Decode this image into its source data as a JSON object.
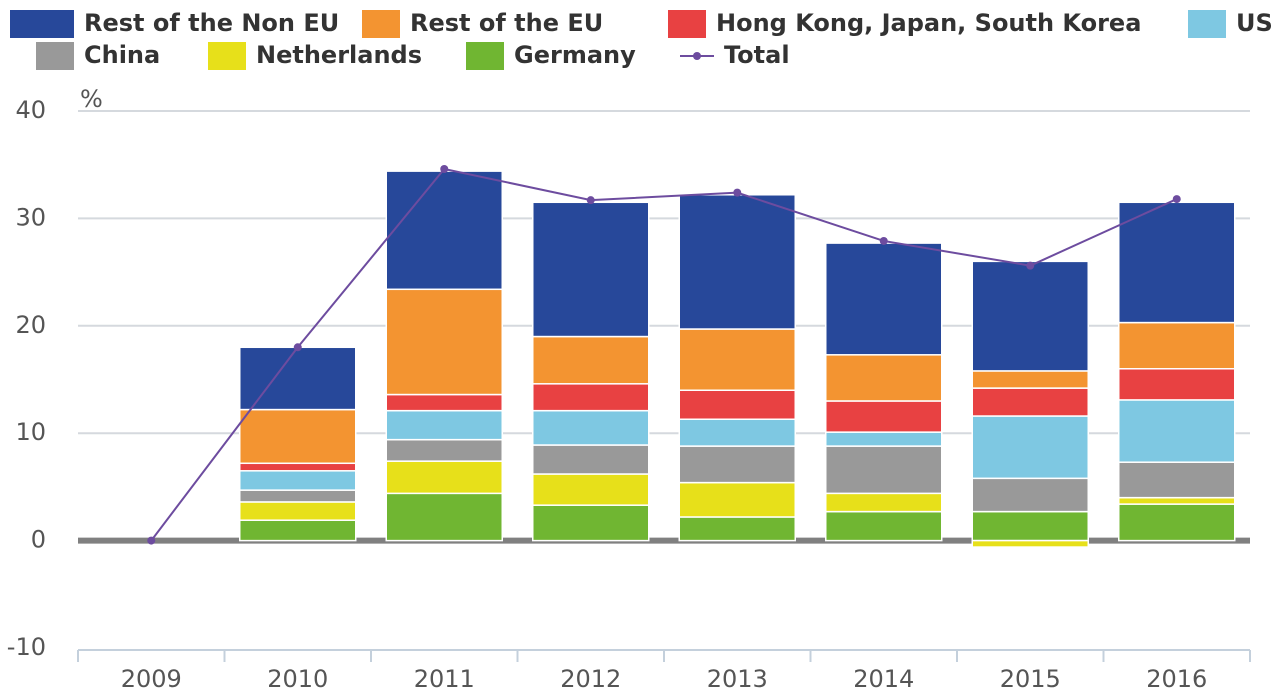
{
  "chart_data": {
    "type": "bar",
    "stacked": true,
    "unit_label": "%",
    "categories": [
      "2009",
      "2010",
      "2011",
      "2012",
      "2013",
      "2014",
      "2015",
      "2016"
    ],
    "series": [
      {
        "name": "Rest of the Non EU",
        "color": "#27489a",
        "values": [
          0,
          5.8,
          11.0,
          12.5,
          12.5,
          10.4,
          10.2,
          11.2
        ]
      },
      {
        "name": "Rest of the EU",
        "color": "#f39431",
        "values": [
          0,
          5.0,
          9.8,
          4.4,
          5.7,
          4.3,
          1.6,
          4.3
        ]
      },
      {
        "name": "Hong Kong, Japan, South Korea",
        "color": "#e84142",
        "values": [
          0,
          0.7,
          1.5,
          2.5,
          2.7,
          2.9,
          2.6,
          2.9
        ]
      },
      {
        "name": "US",
        "color": "#7ec8e2",
        "values": [
          0,
          1.8,
          2.7,
          3.2,
          2.5,
          1.3,
          5.8,
          5.8
        ]
      },
      {
        "name": "China",
        "color": "#999999",
        "values": [
          0,
          1.1,
          2.0,
          2.7,
          3.4,
          4.4,
          3.1,
          3.3
        ]
      },
      {
        "name": "Netherlands",
        "color": "#e7e01a",
        "values": [
          0,
          1.7,
          3.0,
          2.9,
          3.2,
          1.7,
          -0.6,
          0.6
        ]
      },
      {
        "name": "Germany",
        "color": "#70b632",
        "values": [
          0,
          1.9,
          4.4,
          3.3,
          2.2,
          2.7,
          2.7,
          3.4
        ]
      },
      {
        "name": "Total",
        "color": "#6d4c9f",
        "type": "line",
        "values": [
          0,
          18.0,
          34.6,
          31.7,
          32.4,
          27.9,
          25.6,
          31.8
        ]
      }
    ],
    "ylim": [
      -10,
      40
    ],
    "yticks": [
      -10,
      0,
      10,
      20,
      30,
      40
    ],
    "grid": true
  }
}
